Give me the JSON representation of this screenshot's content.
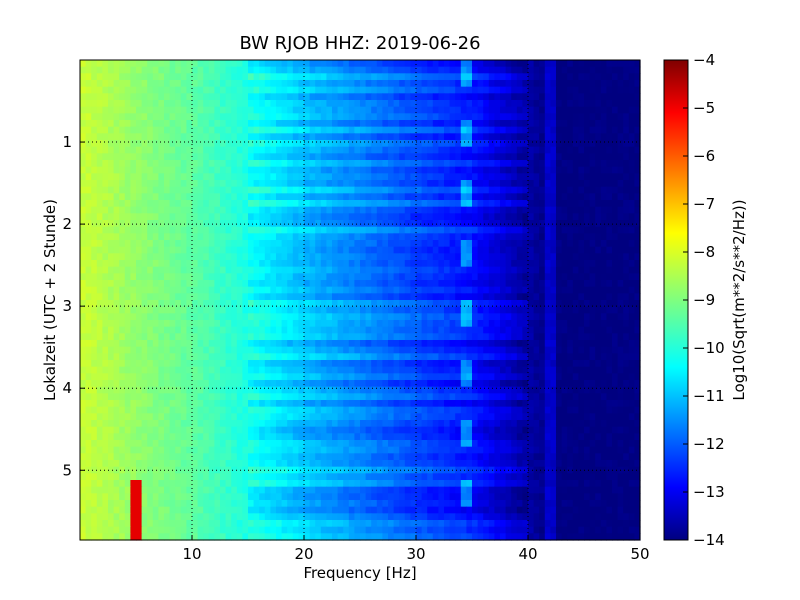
{
  "chart_data": {
    "type": "heatmap",
    "title": "BW RJOB HHZ: 2019-06-26",
    "xlabel": "Frequency [Hz]",
    "ylabel": "Lokalzeit (UTC + 2 Stunde)",
    "xlim": [
      0,
      50
    ],
    "ylim": [
      5.85,
      0
    ],
    "x_ticks": [
      10,
      20,
      30,
      40,
      50
    ],
    "y_ticks": [
      1,
      2,
      3,
      4,
      5
    ],
    "grid": true,
    "colormap": "jet",
    "colorbar": {
      "label": "Log10(Sqrt(m**2/s**2/Hz))",
      "range": [
        -14,
        -4
      ],
      "ticks": [
        -4,
        -5,
        -6,
        -7,
        -8,
        -9,
        -10,
        -11,
        -12,
        -13,
        -14
      ]
    },
    "series": [
      {
        "x": [
          0.5,
          5,
          10,
          15,
          20,
          25,
          30,
          35,
          40,
          42,
          45,
          50
        ],
        "values": [
          -8.3,
          -8.8,
          -9.3,
          -10.0,
          -10.8,
          -11.4,
          -12.0,
          -12.5,
          -13.6,
          -14.0,
          -14.0,
          -14.0
        ]
      }
    ],
    "features": {
      "narrowband_line_hz": 5,
      "narrowband_line_time": [
        5.1,
        5.85
      ],
      "wandering_tone_hz": 34.5,
      "faint_line_hz": 42
    }
  },
  "colors": {
    "jet_stops": [
      "#00007f",
      "#0000ff",
      "#007fff",
      "#00ffff",
      "#7fff7f",
      "#ffff00",
      "#ff7f00",
      "#ff0000",
      "#7f0000"
    ]
  }
}
